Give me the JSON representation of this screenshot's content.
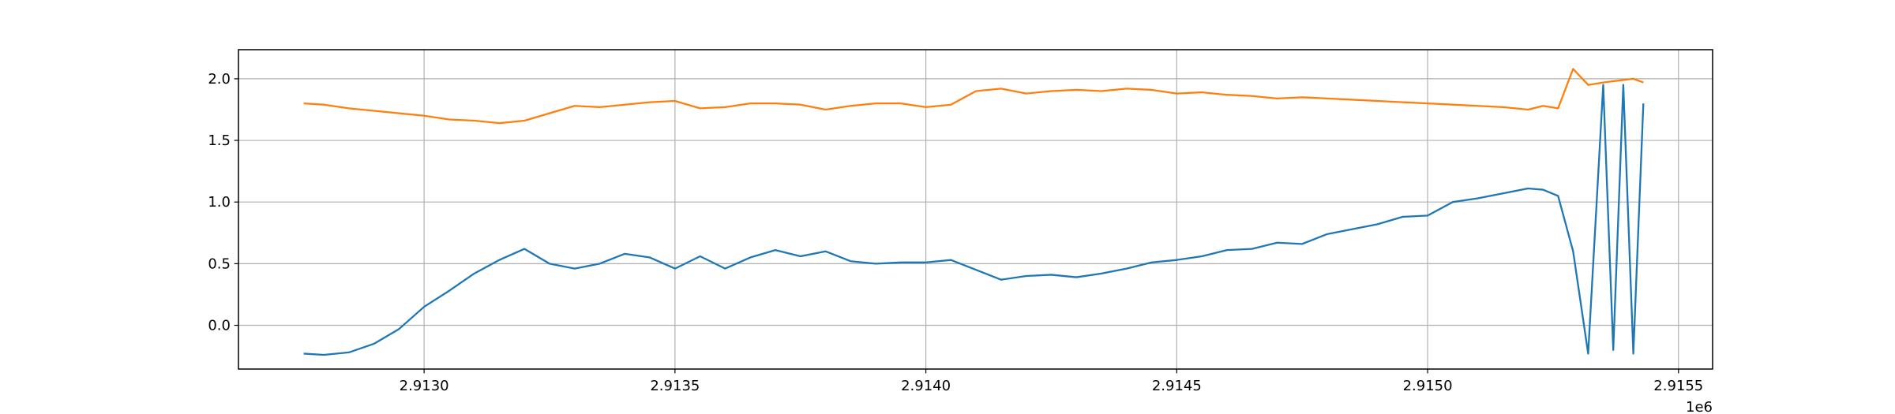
{
  "chart_data": {
    "type": "line",
    "x_offset_label": "1e6",
    "x": [
      2.91276,
      2.9128,
      2.91285,
      2.9129,
      2.91295,
      2.913,
      2.91305,
      2.9131,
      2.91315,
      2.9132,
      2.91325,
      2.9133,
      2.91335,
      2.9134,
      2.91345,
      2.9135,
      2.91355,
      2.9136,
      2.91365,
      2.9137,
      2.91375,
      2.9138,
      2.91385,
      2.9139,
      2.91395,
      2.914,
      2.91405,
      2.9141,
      2.91415,
      2.9142,
      2.91425,
      2.9143,
      2.91435,
      2.9144,
      2.91445,
      2.9145,
      2.91455,
      2.9146,
      2.91465,
      2.9147,
      2.91475,
      2.9148,
      2.91485,
      2.9149,
      2.91495,
      2.915,
      2.91505,
      2.9151,
      2.91515,
      2.9152,
      2.91523,
      2.91526,
      2.91529,
      2.91532,
      2.91535,
      2.91537,
      2.91539,
      2.91541,
      2.91543
    ],
    "series": [
      {
        "color": "#1f77b4",
        "values": [
          -0.23,
          -0.24,
          -0.22,
          -0.15,
          -0.03,
          0.15,
          0.28,
          0.42,
          0.53,
          0.62,
          0.5,
          0.46,
          0.5,
          0.58,
          0.55,
          0.46,
          0.56,
          0.46,
          0.55,
          0.61,
          0.56,
          0.6,
          0.52,
          0.5,
          0.51,
          0.51,
          0.53,
          0.45,
          0.37,
          0.4,
          0.41,
          0.39,
          0.42,
          0.46,
          0.51,
          0.53,
          0.56,
          0.61,
          0.62,
          0.67,
          0.66,
          0.74,
          0.78,
          0.82,
          0.88,
          0.89,
          1.0,
          1.03,
          1.07,
          1.11,
          1.1,
          1.05,
          0.6,
          -0.23,
          1.95,
          -0.2,
          1.95,
          -0.23,
          1.8
        ]
      },
      {
        "color": "#ff7f0e",
        "values": [
          1.8,
          1.79,
          1.76,
          1.74,
          1.72,
          1.7,
          1.67,
          1.66,
          1.64,
          1.66,
          1.72,
          1.78,
          1.77,
          1.79,
          1.81,
          1.82,
          1.76,
          1.77,
          1.8,
          1.8,
          1.79,
          1.75,
          1.78,
          1.8,
          1.8,
          1.77,
          1.79,
          1.9,
          1.92,
          1.88,
          1.9,
          1.91,
          1.9,
          1.92,
          1.91,
          1.88,
          1.89,
          1.87,
          1.86,
          1.84,
          1.85,
          1.84,
          1.83,
          1.82,
          1.81,
          1.8,
          1.79,
          1.78,
          1.77,
          1.75,
          1.78,
          1.76,
          2.08,
          1.95,
          1.97,
          1.98,
          1.99,
          2.0,
          1.97
        ]
      }
    ],
    "xlim": [
      2.91263,
      2.915568
    ],
    "xticks": [
      {
        "value": 2.913,
        "label": "2.9130"
      },
      {
        "value": 2.9135,
        "label": "2.9135"
      },
      {
        "value": 2.914,
        "label": "2.9140"
      },
      {
        "value": 2.9145,
        "label": "2.9145"
      },
      {
        "value": 2.915,
        "label": "2.9150"
      },
      {
        "value": 2.9155,
        "label": "2.9155"
      }
    ],
    "ylim": [
      -0.355,
      2.236
    ],
    "yticks": [
      {
        "value": 0,
        "label": "0.0"
      },
      {
        "value": 0.5,
        "label": "0.5"
      },
      {
        "value": 1,
        "label": "1.0"
      },
      {
        "value": 1.5,
        "label": "1.5"
      },
      {
        "value": 2,
        "label": "2.0"
      }
    ],
    "grid": true
  }
}
